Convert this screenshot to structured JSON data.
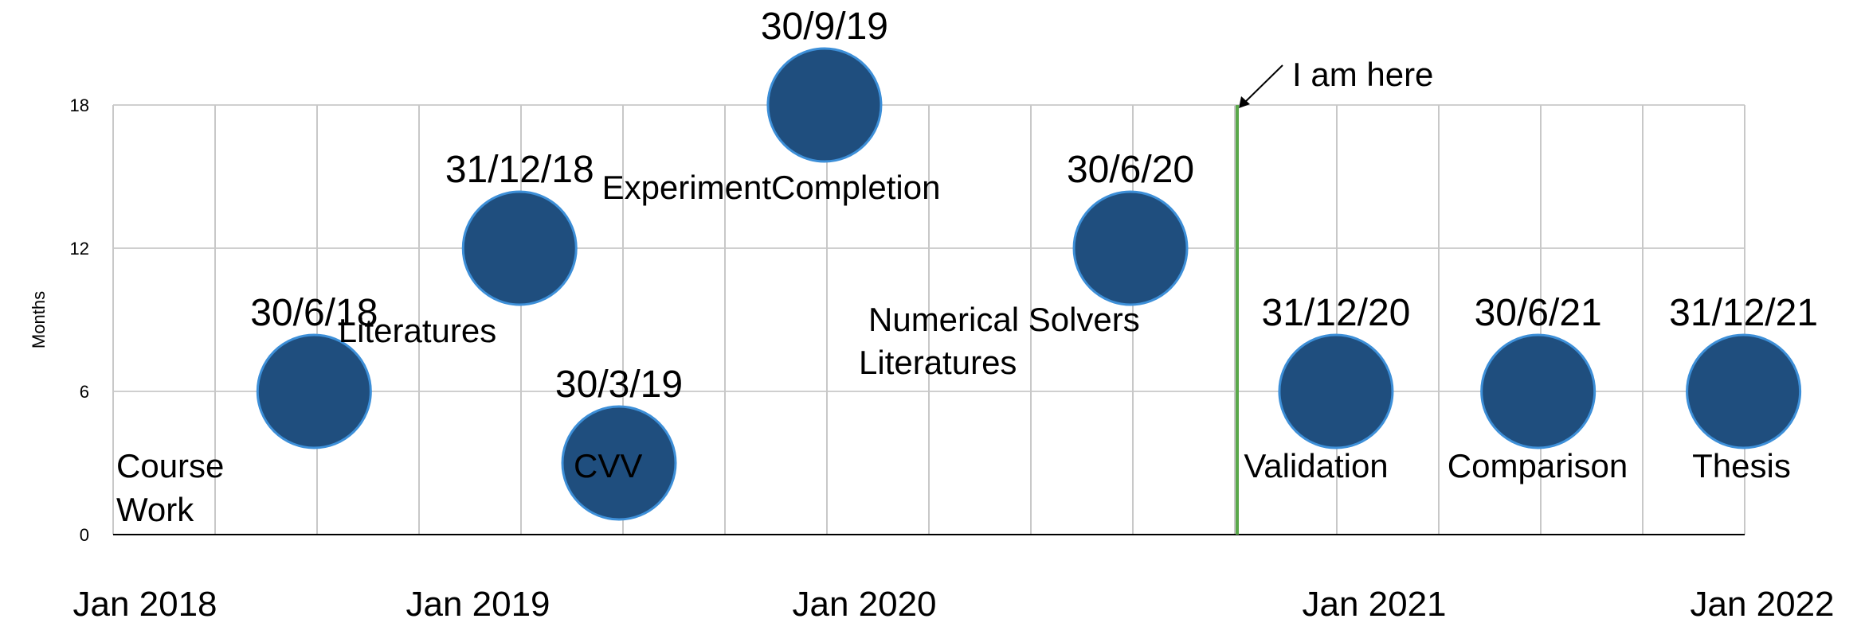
{
  "chart_data": {
    "type": "scatter",
    "ylabel": "Months",
    "ylim": [
      0,
      18
    ],
    "yticks": [
      0,
      6,
      12,
      18
    ],
    "x_ticks": [
      "Jan 2018",
      "Jan 2019",
      "Jan 2020",
      "Jan 2021",
      "Jan 2022"
    ],
    "grid": true,
    "marker_color": "#1f4e7e",
    "marker_edge_color": "#3d8fd8",
    "milestones": [
      {
        "date": "30/6/18",
        "x": "2018-06-30",
        "y": 6,
        "label": "Course Work"
      },
      {
        "date": "31/12/18",
        "x": "2018-12-31",
        "y": 12,
        "label": "Literatures"
      },
      {
        "date": "30/3/19",
        "x": "2019-03-30",
        "y": 3,
        "label": "CVV"
      },
      {
        "date": "30/9/19",
        "x": "2019-09-30",
        "y": 18,
        "label": "ExperimentCompletion"
      },
      {
        "date": "30/6/20",
        "x": "2020-06-30",
        "y": 12,
        "label": "Numerical Solvers Literatures"
      },
      {
        "date": "31/12/20",
        "x": "2020-12-31",
        "y": 6,
        "label": "Validation"
      },
      {
        "date": "30/6/21",
        "x": "2021-06-30",
        "y": 6,
        "label": "Comparison"
      },
      {
        "date": "31/12/21",
        "x": "2021-12-31",
        "y": 6,
        "label": "Thesis"
      }
    ],
    "marker": {
      "x": "2020-11-15",
      "label": "I am here",
      "color": "#5aa84a"
    }
  }
}
